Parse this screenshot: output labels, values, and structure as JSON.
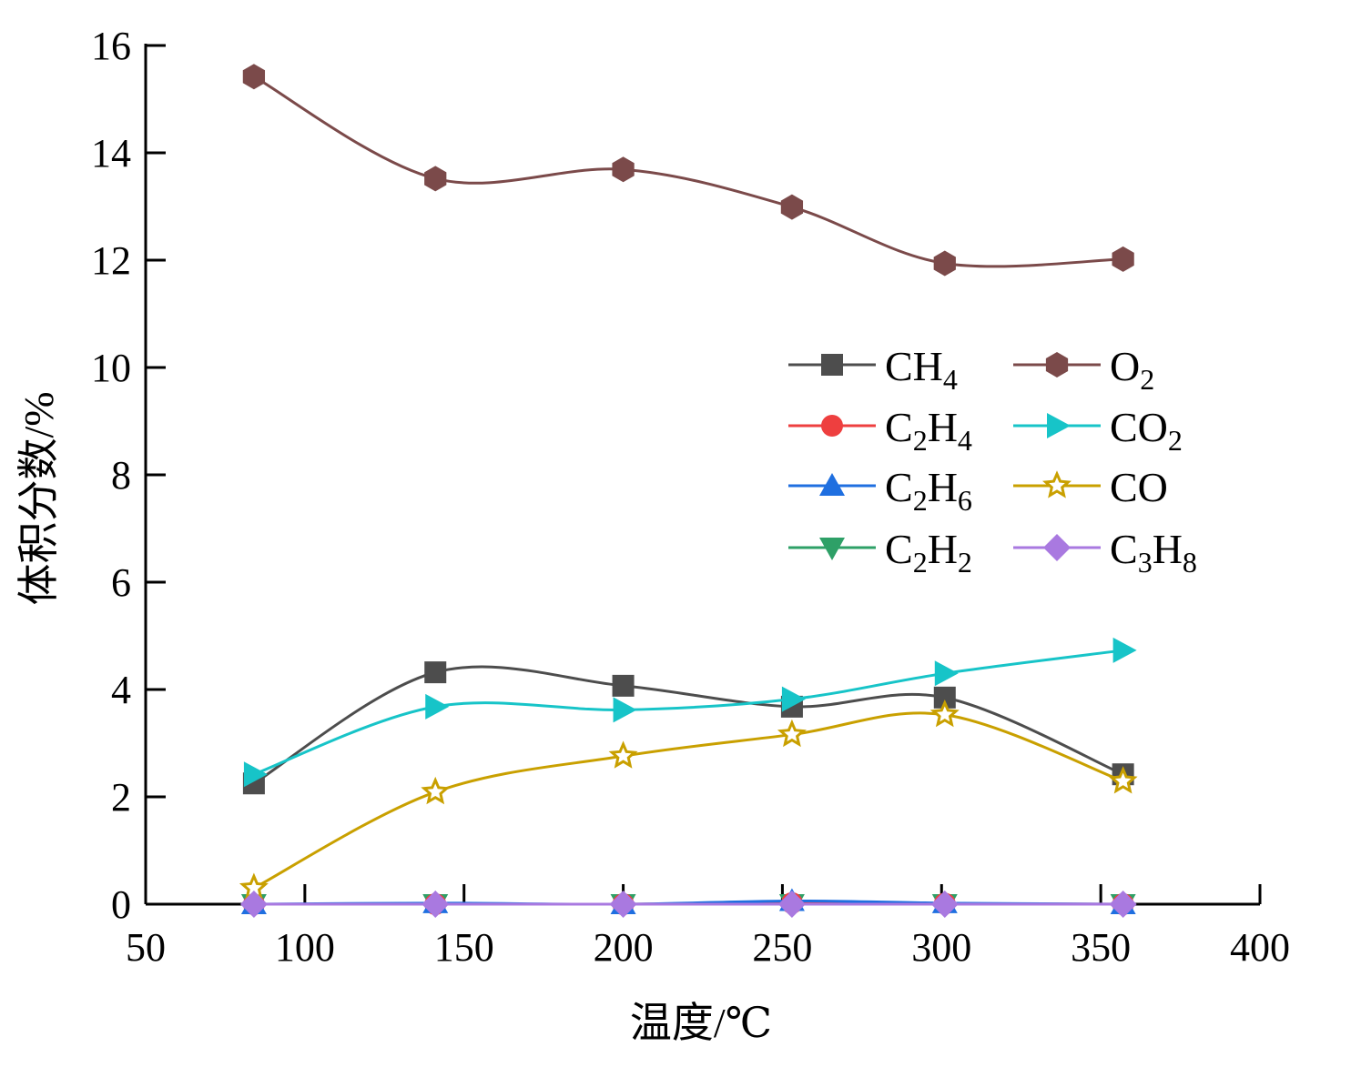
{
  "chart_data": {
    "type": "line",
    "title": "",
    "xlabel": "温度/℃",
    "ylabel": "体积分数/%",
    "xlim": [
      50,
      400
    ],
    "ylim": [
      0,
      16
    ],
    "xticks": [
      50,
      100,
      150,
      200,
      250,
      300,
      350,
      400
    ],
    "yticks": [
      0,
      2,
      4,
      6,
      8,
      10,
      12,
      14,
      16
    ],
    "x": [
      84,
      141,
      200,
      253,
      301,
      357
    ],
    "grid": false,
    "legend_position": "center-right",
    "series": [
      {
        "name": "CH4",
        "label_base": "CH",
        "label_sub": "4",
        "label_tail": "",
        "color": "#4d4d4d",
        "marker": "square",
        "values": [
          2.25,
          4.32,
          4.07,
          3.68,
          3.85,
          2.42
        ]
      },
      {
        "name": "C2H4",
        "label_base": "C",
        "label_sub": "2",
        "label_tail": "H",
        "label_sub2": "4",
        "color": "#ee3f3f",
        "marker": "circle",
        "values": [
          0.0,
          0.0,
          0.0,
          0.02,
          0.01,
          0.0
        ]
      },
      {
        "name": "C2H6",
        "label_base": "C",
        "label_sub": "2",
        "label_tail": "H",
        "label_sub2": "6",
        "color": "#1f6fe0",
        "marker": "triangle-up",
        "values": [
          0.0,
          0.02,
          0.0,
          0.06,
          0.02,
          0.0
        ]
      },
      {
        "name": "C2H2",
        "label_base": "C",
        "label_sub": "2",
        "label_tail": "H",
        "label_sub2": "2",
        "color": "#2ea067",
        "marker": "triangle-down",
        "values": [
          0.0,
          0.0,
          0.0,
          0.0,
          0.0,
          0.0
        ]
      },
      {
        "name": "O2",
        "label_base": "O",
        "label_sub": "2",
        "label_tail": "",
        "color": "#7b4a4a",
        "marker": "hexagon",
        "values": [
          15.42,
          13.52,
          13.69,
          12.99,
          11.94,
          12.02
        ]
      },
      {
        "name": "CO2",
        "label_base": "CO",
        "label_sub": "2",
        "label_tail": "",
        "color": "#17c4c8",
        "marker": "triangle-right",
        "values": [
          2.42,
          3.68,
          3.62,
          3.82,
          4.3,
          4.73
        ]
      },
      {
        "name": "CO",
        "label_base": "CO",
        "label_sub": "",
        "label_tail": "",
        "color": "#c9a000",
        "marker": "star",
        "values": [
          0.3,
          2.09,
          2.76,
          3.16,
          3.53,
          2.29
        ]
      },
      {
        "name": "C3H8",
        "label_base": "C",
        "label_sub": "3",
        "label_tail": "H",
        "label_sub2": "8",
        "color": "#a979e0",
        "marker": "diamond",
        "values": [
          0.0,
          0.0,
          0.0,
          0.0,
          0.0,
          0.0
        ]
      }
    ]
  }
}
